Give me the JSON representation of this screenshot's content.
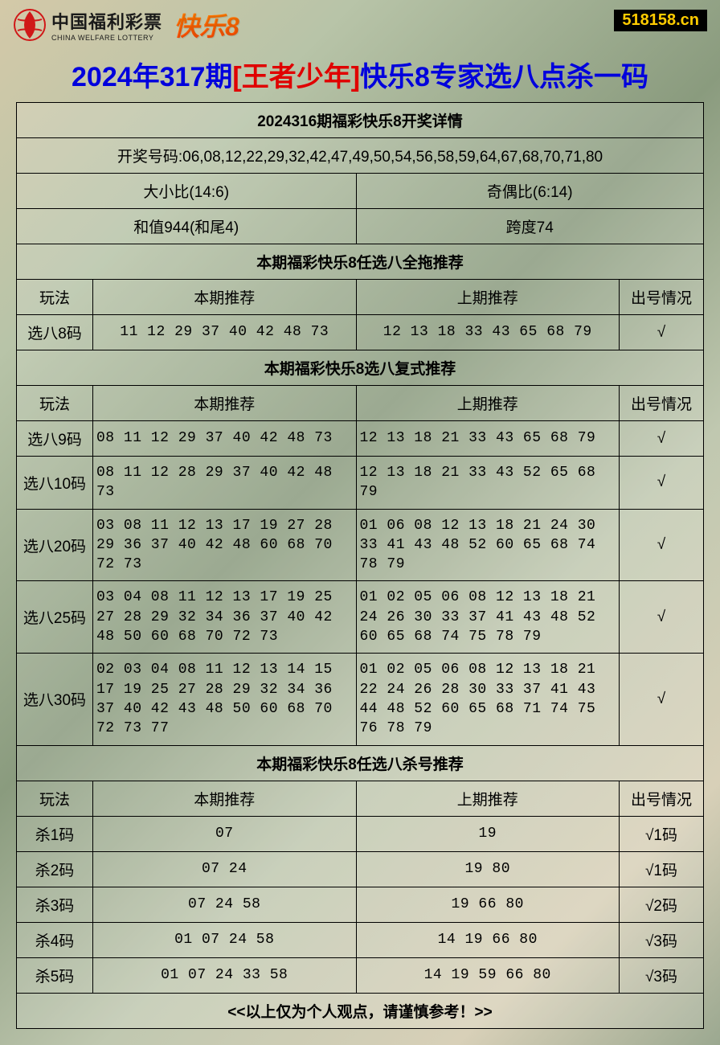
{
  "header": {
    "logo_cn": "中国福利彩票",
    "logo_en": "CHINA WELFARE LOTTERY",
    "kuaile8": "快乐8",
    "site_badge": "518158.cn",
    "logo_color": "#d01818"
  },
  "title": {
    "part1": "2024年317期",
    "part2": "[王者少年]",
    "part3": "快乐8专家选八点杀一码"
  },
  "draw_info": {
    "header": "2024316期福彩快乐8开奖详情",
    "numbers_label": "开奖号码:",
    "numbers": "06,08,12,22,29,32,42,47,49,50,54,56,58,59,64,67,68,70,71,80",
    "big_small": "大小比(14:6)",
    "odd_even": "奇偶比(6:14)",
    "sum": "和值944(和尾4)",
    "span": "跨度74"
  },
  "section1": {
    "title": "本期福彩快乐8任选八全拖推荐",
    "headers": {
      "method": "玩法",
      "current": "本期推荐",
      "prev": "上期推荐",
      "result": "出号情况"
    },
    "rows": [
      {
        "method": "选八8码",
        "current": "11 12 29 37 40 42 48 73",
        "prev": "12 13 18 33 43 65 68 79",
        "result": "√"
      }
    ]
  },
  "section2": {
    "title": "本期福彩快乐8选八复式推荐",
    "headers": {
      "method": "玩法",
      "current": "本期推荐",
      "prev": "上期推荐",
      "result": "出号情况"
    },
    "rows": [
      {
        "method": "选八9码",
        "current": "08 11 12 29 37 40 42 48 73",
        "prev": "12 13 18 21 33 43 65 68 79",
        "result": "√"
      },
      {
        "method": "选八10码",
        "current": "08 11 12 28 29 37 40 42 48 73",
        "prev": "12 13 18 21 33 43 52 65 68 79",
        "result": "√"
      },
      {
        "method": "选八20码",
        "current": "03 08 11 12 13 17 19 27 28 29 36 37 40 42 48 60 68 70 72 73",
        "prev": "01 06 08 12 13 18 21 24 30 33 41 43 48 52 60 65 68 74 78 79",
        "result": "√"
      },
      {
        "method": "选八25码",
        "current": "03 04 08 11 12 13 17 19 25 27 28 29 32 34 36 37 40 42 48 50 60 68 70 72 73",
        "prev": "01 02 05 06 08 12 13 18 21 24 26 30 33 37 41 43 48 52 60 65 68 74 75 78 79",
        "result": "√"
      },
      {
        "method": "选八30码",
        "current": "02 03 04 08 11 12 13 14 15 17 19 25 27 28 29 32 34 36 37 40 42 43 48 50 60 68 70 72 73 77",
        "prev": "01 02 05 06 08 12 13 18 21 22 24 26 28 30 33 37 41 43 44 48 52 60 65 68 71 74 75 76 78 79",
        "result": "√"
      }
    ]
  },
  "section3": {
    "title": "本期福彩快乐8任选八杀号推荐",
    "headers": {
      "method": "玩法",
      "current": "本期推荐",
      "prev": "上期推荐",
      "result": "出号情况"
    },
    "rows": [
      {
        "method": "杀1码",
        "current": "07",
        "prev": "19",
        "result": "√1码"
      },
      {
        "method": "杀2码",
        "current": "07 24",
        "prev": "19 80",
        "result": "√1码"
      },
      {
        "method": "杀3码",
        "current": "07 24 58",
        "prev": "19 66 80",
        "result": "√2码"
      },
      {
        "method": "杀4码",
        "current": "01 07 24 58",
        "prev": "14 19 66 80",
        "result": "√3码"
      },
      {
        "method": "杀5码",
        "current": "01 07 24 33 58",
        "prev": "14 19 59 66 80",
        "result": "√3码"
      }
    ]
  },
  "footer": "<<以上仅为个人观点，请谨慎参考！>>",
  "colors": {
    "title_red": "#e00000",
    "title_blue": "#0000dd",
    "badge_bg": "#000000",
    "badge_fg": "#ffcc00",
    "border": "#000000"
  }
}
